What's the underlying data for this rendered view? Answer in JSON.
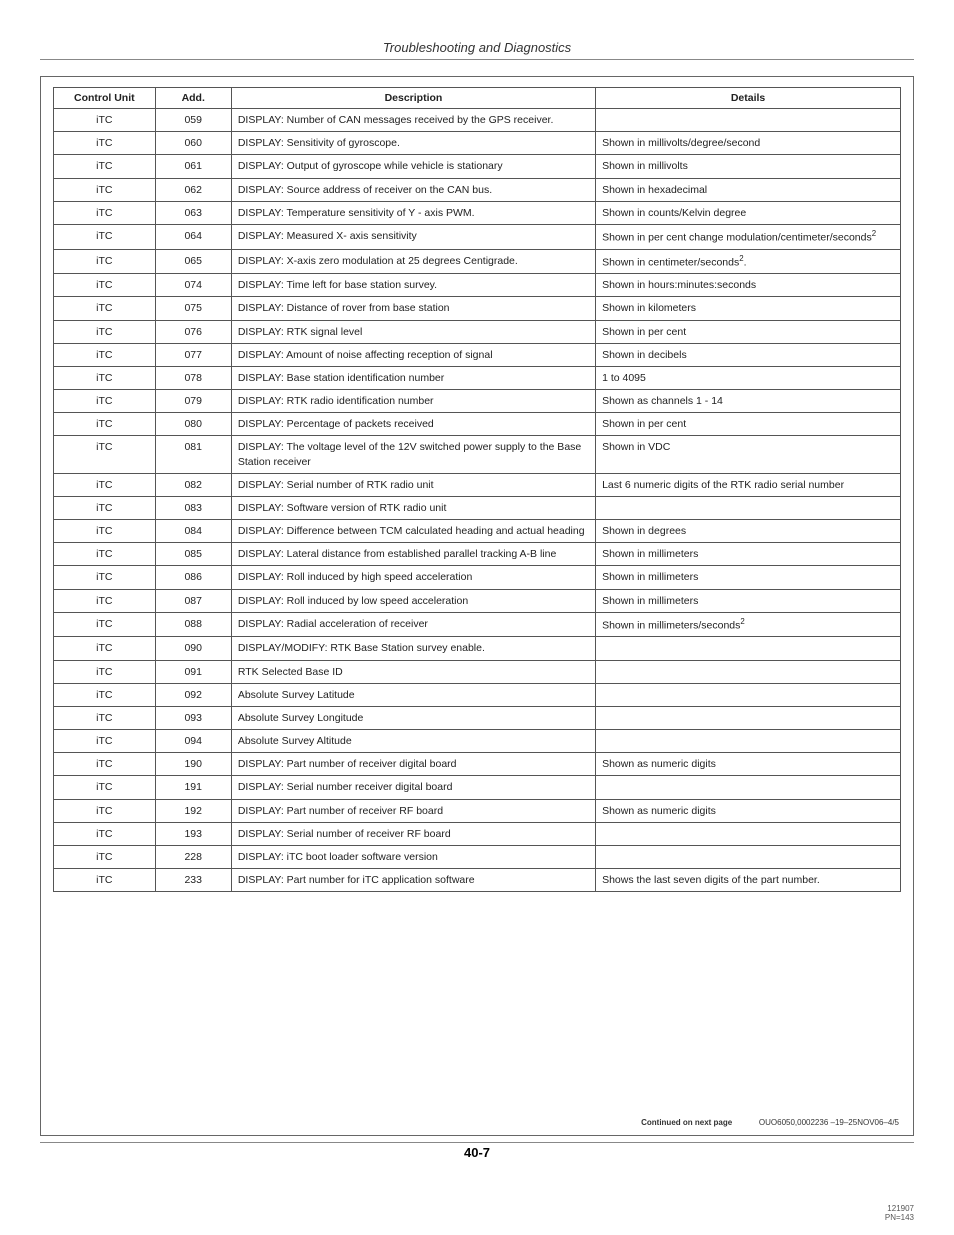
{
  "header": {
    "section_title": "Troubleshooting and Diagnostics"
  },
  "table": {
    "columns": [
      "Control Unit",
      "Add.",
      "Description",
      "Details"
    ],
    "rows": [
      {
        "cu": "iTC",
        "add": "059",
        "desc": "DISPLAY: Number of CAN messages received by the GPS receiver.",
        "details": ""
      },
      {
        "cu": "iTC",
        "add": "060",
        "desc": "DISPLAY: Sensitivity of gyroscope.",
        "details": "Shown in millivolts/degree/second"
      },
      {
        "cu": "iTC",
        "add": "061",
        "desc": "DISPLAY: Output of gyroscope while vehicle is stationary",
        "details": "Shown in millivolts"
      },
      {
        "cu": "iTC",
        "add": "062",
        "desc": "DISPLAY: Source address of receiver on the CAN bus.",
        "details": "Shown in hexadecimal"
      },
      {
        "cu": "iTC",
        "add": "063",
        "desc": "DISPLAY: Temperature sensitivity of Y - axis PWM.",
        "details": "Shown in counts/Kelvin degree"
      },
      {
        "cu": "iTC",
        "add": "064",
        "desc": "DISPLAY: Measured X- axis sensitivity",
        "details": "Shown in per cent change modulation/centimeter/seconds",
        "details_sup": "2"
      },
      {
        "cu": "iTC",
        "add": "065",
        "desc": "DISPLAY: X-axis zero modulation at 25 degrees Centigrade.",
        "details": "Shown in centimeter/seconds",
        "details_sup": "2",
        "details_suffix": "."
      },
      {
        "cu": "iTC",
        "add": "074",
        "desc": "DISPLAY: Time left for base station survey.",
        "details": "Shown in hours:minutes:seconds"
      },
      {
        "cu": "iTC",
        "add": "075",
        "desc": "DISPLAY: Distance of rover from base station",
        "details": "Shown in kilometers"
      },
      {
        "cu": "iTC",
        "add": "076",
        "desc": "DISPLAY: RTK signal level",
        "details": "Shown in per cent"
      },
      {
        "cu": "iTC",
        "add": "077",
        "desc": "DISPLAY: Amount of noise affecting reception of signal",
        "details": "Shown in decibels"
      },
      {
        "cu": "iTC",
        "add": "078",
        "desc": "DISPLAY: Base station identification number",
        "details": "1 to 4095"
      },
      {
        "cu": "iTC",
        "add": "079",
        "desc": "DISPLAY: RTK radio identification number",
        "details": "Shown as channels 1 - 14"
      },
      {
        "cu": "iTC",
        "add": "080",
        "desc": "DISPLAY: Percentage of packets received",
        "details": "Shown in per cent"
      },
      {
        "cu": "iTC",
        "add": "081",
        "desc": "DISPLAY: The voltage level of the 12V switched power supply to the Base Station receiver",
        "details": "Shown in VDC"
      },
      {
        "cu": "iTC",
        "add": "082",
        "desc": "DISPLAY: Serial number of RTK radio unit",
        "details": "Last 6 numeric digits of the RTK radio serial number"
      },
      {
        "cu": "iTC",
        "add": "083",
        "desc": "DISPLAY: Software version of RTK radio unit",
        "details": ""
      },
      {
        "cu": "iTC",
        "add": "084",
        "desc": "DISPLAY: Difference between TCM calculated heading and actual heading",
        "details": "Shown in degrees"
      },
      {
        "cu": "iTC",
        "add": "085",
        "desc": "DISPLAY: Lateral distance from established parallel tracking A-B line",
        "details": "Shown in millimeters"
      },
      {
        "cu": "iTC",
        "add": "086",
        "desc": "DISPLAY: Roll induced by high speed acceleration",
        "details": "Shown in millimeters"
      },
      {
        "cu": "iTC",
        "add": "087",
        "desc": "DISPLAY: Roll induced by low speed acceleration",
        "details": "Shown in millimeters"
      },
      {
        "cu": "iTC",
        "add": "088",
        "desc": "DISPLAY: Radial acceleration of receiver",
        "details": "Shown in millimeters/seconds",
        "details_sup": "2"
      },
      {
        "cu": "iTC",
        "add": "090",
        "desc": "DISPLAY/MODIFY: RTK Base Station survey enable.",
        "details": ""
      },
      {
        "cu": "iTC",
        "add": "091",
        "desc": "RTK Selected Base ID",
        "details": ""
      },
      {
        "cu": "iTC",
        "add": "092",
        "desc": "Absolute Survey Latitude",
        "details": ""
      },
      {
        "cu": "iTC",
        "add": "093",
        "desc": "Absolute Survey Longitude",
        "details": ""
      },
      {
        "cu": "iTC",
        "add": "094",
        "desc": "Absolute Survey Altitude",
        "details": ""
      },
      {
        "cu": "iTC",
        "add": "190",
        "desc": "DISPLAY: Part number of receiver digital board",
        "details": "Shown as numeric digits"
      },
      {
        "cu": "iTC",
        "add": "191",
        "desc": "DISPLAY: Serial number receiver digital board",
        "details": ""
      },
      {
        "cu": "iTC",
        "add": "192",
        "desc": "DISPLAY: Part number of receiver RF board",
        "details": "Shown as numeric digits"
      },
      {
        "cu": "iTC",
        "add": "193",
        "desc": "DISPLAY: Serial number of receiver RF board",
        "details": ""
      },
      {
        "cu": "iTC",
        "add": "228",
        "desc": "DISPLAY: iTC boot loader software version",
        "details": ""
      },
      {
        "cu": "iTC",
        "add": "233",
        "desc": "DISPLAY: Part number for iTC application software",
        "details": "Shows the last seven digits of the part number."
      }
    ]
  },
  "footer": {
    "continued_label": "Continued on next page",
    "doc_code": "OUO6050,0002236  –19–25NOV06–4/5",
    "page_number": "40-7",
    "date_code": "121907",
    "pn": "PN=143"
  }
}
